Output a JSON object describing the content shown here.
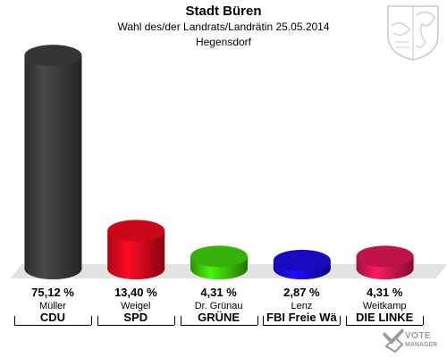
{
  "header": {
    "title": "Stadt Büren",
    "subtitle": "Wahl des/der Landrats/Landrätin 25.05.2014",
    "location": "Hegensdorf"
  },
  "chart_data": {
    "type": "bar",
    "title": "Stadt Büren",
    "subtitle": "Wahl des/der Landrats/Landrätin 25.05.2014",
    "ylim": [
      0,
      100
    ],
    "grid": false,
    "categories": [
      "Müller",
      "Weigel",
      "Dr. Grünau",
      "Lenz",
      "Weitkamp"
    ],
    "parties": [
      "CDU",
      "SPD",
      "GRÜNE",
      "FBI Freie Wä",
      "DIE LINKE"
    ],
    "values": [
      75.12,
      13.4,
      4.31,
      2.87,
      4.31
    ],
    "value_labels": [
      "75,12 %",
      "13,40 %",
      "4,31 %",
      "2,87 %",
      "4,31 %"
    ],
    "colors": [
      "#3a3a3a",
      "#e0091c",
      "#3cc30b",
      "#1b0cd4",
      "#d4164f"
    ]
  },
  "watermark": {
    "line1": "VOTE",
    "line2": "MANAGER"
  },
  "icons": {
    "crest": "coat-of-arms-icon",
    "watermark": "votemanager-logo-icon"
  }
}
